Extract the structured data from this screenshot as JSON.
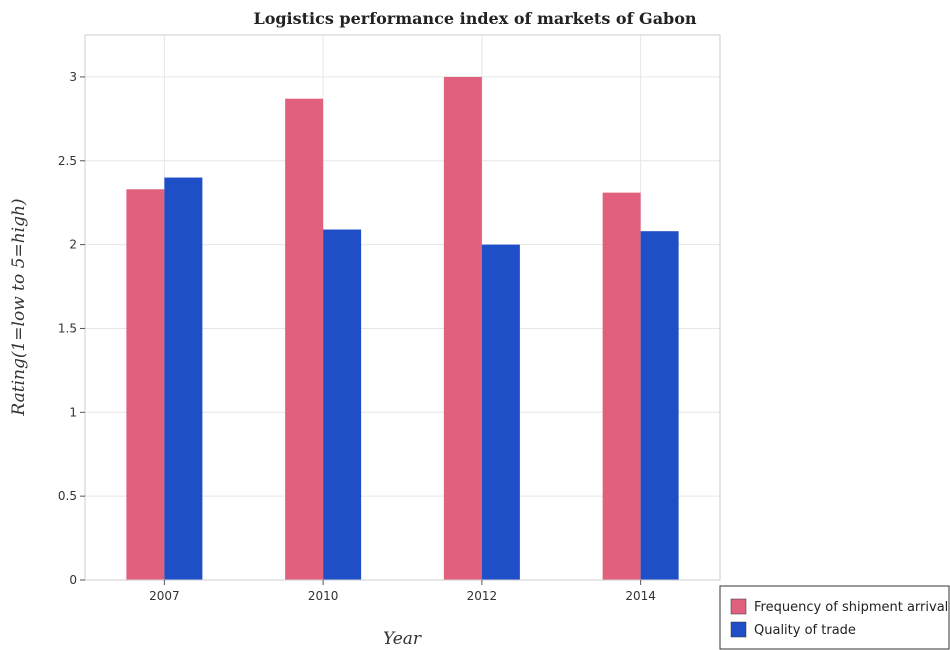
{
  "chart_data": {
    "type": "bar",
    "title": "Logistics performance index of markets of Gabon",
    "xlabel": "Year",
    "ylabel": "Rating(1=low to 5=high)",
    "categories": [
      "2007",
      "2010",
      "2012",
      "2014"
    ],
    "series": [
      {
        "name": "Frequency of shipment arrival",
        "color": "#e0607e",
        "values": [
          2.33,
          2.87,
          3.0,
          2.31
        ]
      },
      {
        "name": "Quality of trade",
        "color": "#1f4fc7",
        "values": [
          2.4,
          2.09,
          2.0,
          2.08
        ]
      }
    ],
    "ylim": [
      0,
      3.25
    ],
    "yticks": [
      "0",
      "0.5",
      "1",
      "1.5",
      "2",
      "2.5",
      "3"
    ],
    "grid": true,
    "legend": "bottom-right"
  }
}
